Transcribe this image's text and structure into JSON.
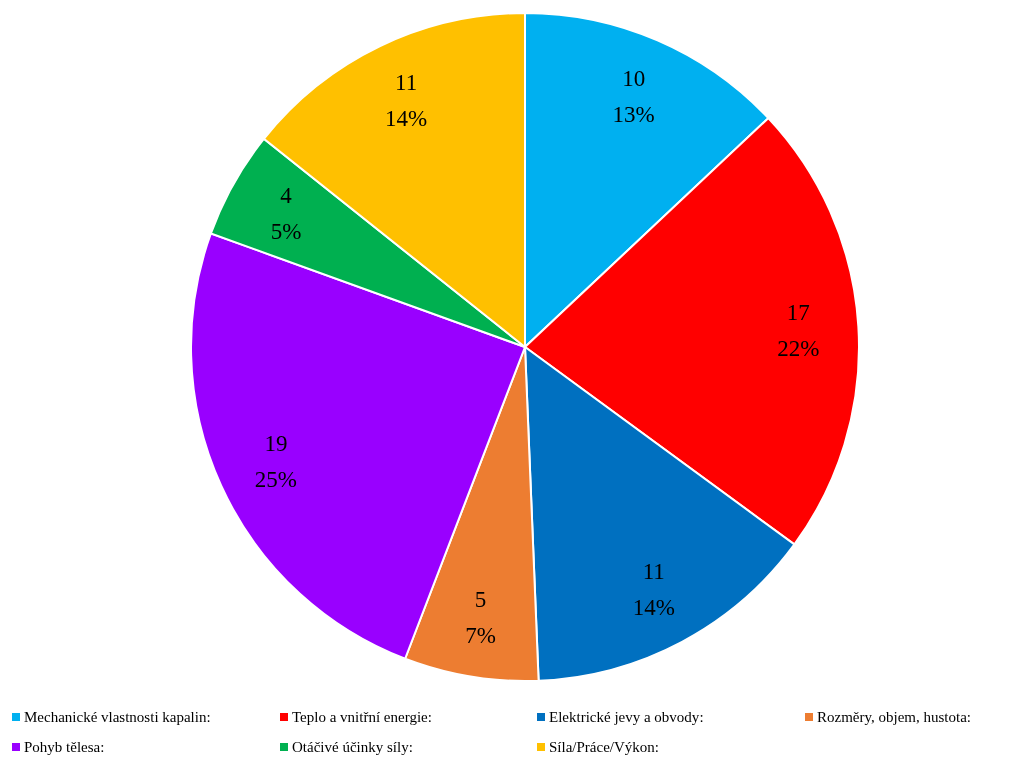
{
  "chart_data": {
    "type": "pie",
    "categories": [
      "Mechanické vlastnosti kapalin",
      "Teplo a vnitřní energie",
      "Elektrické jevy a obvody",
      "Rozměry, objem, hustota",
      "Pohyb tělesa",
      "Otáčivé účinky síly",
      "Síla/Práce/Výkon"
    ],
    "values": [
      10,
      17,
      11,
      5,
      19,
      4,
      11
    ],
    "colors": [
      "#00b0f0",
      "#ff0000",
      "#0070c0",
      "#ed7d31",
      "#9900ff",
      "#00b050",
      "#ffc000"
    ],
    "value_labels": [
      "10\n13%",
      "17\n22%",
      "11\n14%",
      "5\n7%",
      "19\n25%",
      "4\n5%",
      "11\n14%"
    ],
    "annotations": [
      ":",
      ":",
      ":",
      ":",
      ":",
      ":",
      ":"
    ],
    "legend": "bottom"
  }
}
